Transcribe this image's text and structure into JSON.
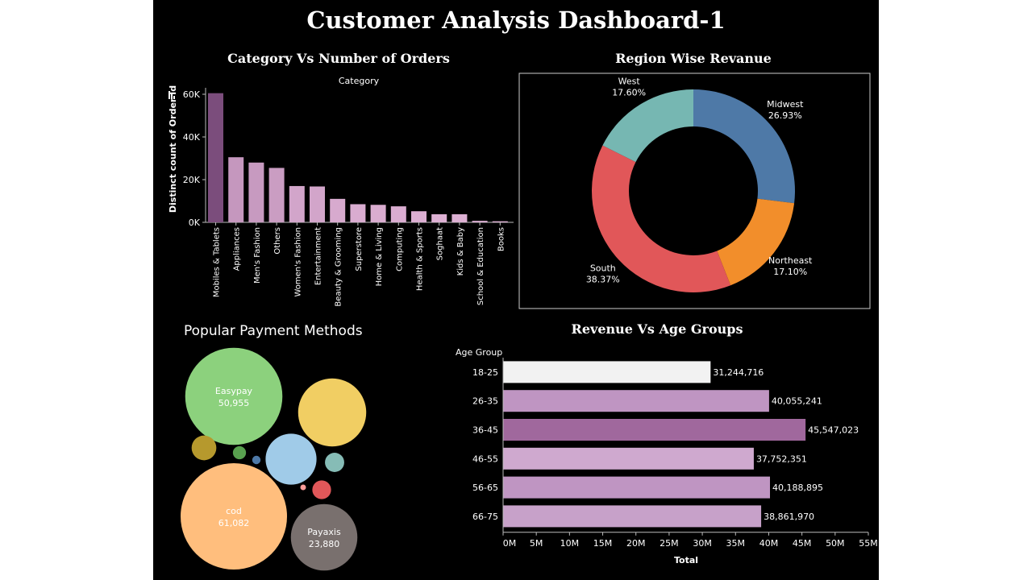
{
  "dashboard": {
    "title": "Customer Analysis Dashboard-1"
  },
  "colors": {
    "background": "#000000",
    "bar_purple_dark": "#7b4d7c",
    "bar_purple_light": "#e0b3d6",
    "west": "#76b7b2",
    "midwest": "#4e79a7",
    "northeast": "#f28e2b",
    "south": "#e15759"
  },
  "chart_data": [
    {
      "id": "orders",
      "type": "bar",
      "title": "Category Vs Number of Orders",
      "header": "Category",
      "ylabel": "Distinct count of Order Id",
      "ylim": [
        0,
        60000
      ],
      "y_ticks": [
        {
          "v": 0,
          "label": "0K"
        },
        {
          "v": 20000,
          "label": "20K"
        },
        {
          "v": 40000,
          "label": "40K"
        },
        {
          "v": 60000,
          "label": "60K"
        }
      ],
      "categories": [
        "Mobiles & Tablets",
        "Appliances",
        "Men's Fashion",
        "Others",
        "Women's Fashion",
        "Entertainment",
        "Beauty & Grooming",
        "Superstore",
        "Home & Living",
        "Computing",
        "Health & Sports",
        "Soghaat",
        "Kids & Baby",
        "School & Education",
        "Books"
      ],
      "values": [
        60500,
        30500,
        28000,
        25500,
        17000,
        16800,
        11000,
        8500,
        8200,
        7500,
        5200,
        3800,
        3800,
        700,
        500
      ]
    },
    {
      "id": "region",
      "type": "pie",
      "title": "Region Wise Revanue",
      "slices": [
        {
          "name": "Midwest",
          "pct": "26.93%",
          "value": 26.93,
          "color": "#4e79a7"
        },
        {
          "name": "Northeast",
          "pct": "17.10%",
          "value": 17.1,
          "color": "#f28e2b"
        },
        {
          "name": "South",
          "pct": "38.37%",
          "value": 38.37,
          "color": "#e15759"
        },
        {
          "name": "West",
          "pct": "17.60%",
          "value": 17.6,
          "color": "#76b7b2"
        }
      ]
    },
    {
      "id": "payment",
      "type": "bubble",
      "title": "Popular Payment Methods",
      "bubbles": [
        {
          "name": "Easypay",
          "value_label": "50,955",
          "value": 50955,
          "color": "#8cd17d",
          "labeled": true
        },
        {
          "name": "cod",
          "value_label": "61,082",
          "value": 61082,
          "color": "#ffbe7d",
          "labeled": true
        },
        {
          "name": "Payaxis",
          "value_label": "23,880",
          "value": 23880,
          "color": "#79706e",
          "labeled": true
        },
        {
          "name": "",
          "value_label": "",
          "value": 25000,
          "color": "#f1ce63",
          "labeled": false
        },
        {
          "name": "",
          "value_label": "",
          "value": 14000,
          "color": "#a0cbe8",
          "labeled": false
        },
        {
          "name": "",
          "value_label": "",
          "value": 3300,
          "color": "#b6992d",
          "labeled": false
        },
        {
          "name": "",
          "value_label": "",
          "value": 2000,
          "color": "#86bcb6",
          "labeled": false
        },
        {
          "name": "",
          "value_label": "",
          "value": 1900,
          "color": "#e15759",
          "labeled": false
        },
        {
          "name": "",
          "value_label": "",
          "value": 930,
          "color": "#59a14f",
          "labeled": false
        },
        {
          "name": "",
          "value_label": "",
          "value": 380,
          "color": "#4e79a7",
          "labeled": false
        },
        {
          "name": "",
          "value_label": "",
          "value": 90,
          "color": "#ff9d9a",
          "labeled": false
        }
      ]
    },
    {
      "id": "age",
      "type": "bar",
      "orientation": "horizontal",
      "title": "Revenue Vs Age Groups",
      "header": "Age Group",
      "xlabel": "Total",
      "xlim": [
        0,
        55000000
      ],
      "x_ticks": [
        "0M",
        "5M",
        "10M",
        "15M",
        "20M",
        "25M",
        "30M",
        "35M",
        "40M",
        "45M",
        "50M",
        "55M"
      ],
      "categories": [
        "18-25",
        "26-35",
        "36-45",
        "46-55",
        "56-65",
        "66-75"
      ],
      "values": [
        31244716,
        40055241,
        45547023,
        37752351,
        40188895,
        38861970
      ],
      "value_labels": [
        "31,244,716",
        "40,055,241",
        "45,547,023",
        "37,752,351",
        "40,188,895",
        "38,861,970"
      ],
      "bar_colors": [
        "#f2f2f2",
        "#bf95c2",
        "#a0689d",
        "#cfa9cf",
        "#bf95c2",
        "#c7a1c9"
      ]
    }
  ]
}
